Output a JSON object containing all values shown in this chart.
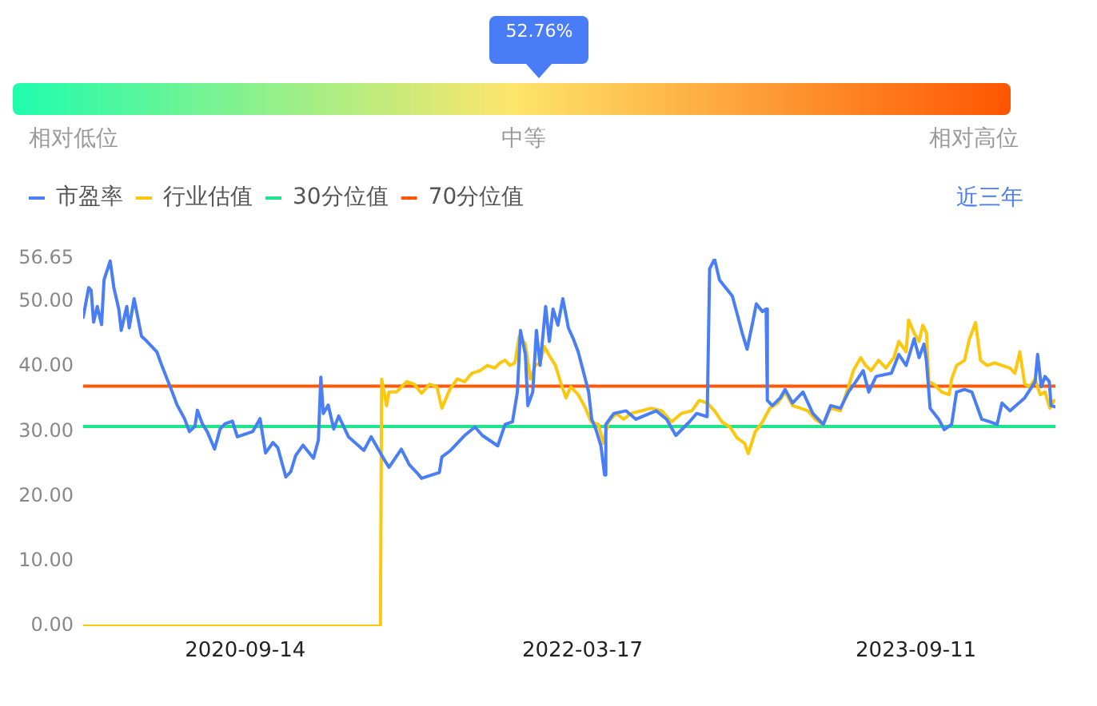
{
  "chart_data": [
    {
      "type": "other",
      "values": [
        52.76
      ],
      "value_labels": [
        "52.76%"
      ],
      "annotations": [
        "相对低位",
        "中等",
        "相对高位"
      ]
    },
    {
      "type": "line",
      "legend": "top left",
      "grid": false,
      "marker": "none",
      "annotations": [
        "近三年"
      ],
      "xlim": [
        "2019-12-25",
        "2024-04-25"
      ],
      "xticks": [
        "2020-09-14",
        "2022-03-17",
        "2023-09-11"
      ],
      "ylim": [
        0,
        56.65
      ],
      "yticks": [
        {
          "value": 0,
          "label": "0.00"
        },
        {
          "value": 10,
          "label": "10.00"
        },
        {
          "value": 20,
          "label": "20.00"
        },
        {
          "value": 30,
          "label": "30.00"
        },
        {
          "value": 40,
          "label": "40.00"
        },
        {
          "value": 50,
          "label": "50.00"
        },
        56.65
      ],
      "series": [
        {
          "name": "市盈率",
          "color": "#4a7ef5",
          "x": [
            "2019-12-25",
            "2020-01-03",
            "2020-01-07",
            "2020-01-11",
            "2020-01-17",
            "2020-01-24",
            "2020-01-28",
            "2020-02-07",
            "2020-02-13",
            "2020-02-21",
            "2020-02-25",
            "2020-03-05",
            "2020-03-09",
            "2020-03-17",
            "2020-03-29",
            "2020-04-07",
            "2020-04-23",
            "2020-05-01",
            "2020-05-18",
            "2020-05-26",
            "2020-06-07",
            "2020-06-15",
            "2020-06-24",
            "2020-06-28",
            "2020-07-06",
            "2020-07-14",
            "2020-07-26",
            "2020-08-04",
            "2020-08-12",
            "2020-08-24",
            "2020-09-01",
            "2020-09-26",
            "2020-10-08",
            "2020-10-17",
            "2020-10-29",
            "2020-11-06",
            "2020-11-19",
            "2020-11-27",
            "2020-12-05",
            "2020-12-17",
            "2021-01-03",
            "2021-01-11",
            "2021-01-15",
            "2021-01-19",
            "2021-01-27",
            "2021-02-05",
            "2021-02-13",
            "2021-03-01",
            "2021-03-26",
            "2021-04-07",
            "2021-04-28",
            "2021-05-06",
            "2021-05-26",
            "2021-06-08",
            "2021-06-20",
            "2021-06-28",
            "2021-07-11",
            "2021-07-27",
            "2021-07-31",
            "2021-08-13",
            "2021-09-06",
            "2021-09-23",
            "2021-10-05",
            "2021-10-30",
            "2021-11-11",
            "2021-11-23",
            "2021-12-01",
            "2021-12-06",
            "2021-12-14",
            "2021-12-18",
            "2021-12-26",
            "2022-01-01",
            "2022-01-07",
            "2022-01-16",
            "2022-01-22",
            "2022-01-28",
            "2022-02-05",
            "2022-02-13",
            "2022-02-22",
            "2022-03-02",
            "2022-03-10",
            "2022-03-18",
            "2022-03-27",
            "2022-04-01",
            "2022-04-08",
            "2022-04-16",
            "2022-04-22",
            "2022-04-24",
            "2022-05-07",
            "2022-05-27",
            "2022-06-12",
            "2022-07-15",
            "2022-08-01",
            "2022-08-16",
            "2022-09-07",
            "2022-09-19",
            "2022-10-06",
            "2022-10-10",
            "2022-10-18",
            "2022-10-26",
            "2022-11-16",
            "2022-11-24",
            "2022-12-02",
            "2022-12-10",
            "2022-12-19",
            "2022-12-25",
            "2023-01-04",
            "2023-01-10",
            "2023-01-12",
            "2023-01-20",
            "2023-02-02",
            "2023-02-10",
            "2023-02-22",
            "2023-03-11",
            "2023-03-27",
            "2023-04-13",
            "2023-04-25",
            "2023-05-11",
            "2023-05-24",
            "2023-06-05",
            "2023-06-17",
            "2023-06-26",
            "2023-07-08",
            "2023-08-02",
            "2023-08-14",
            "2023-08-26",
            "2023-09-08",
            "2023-09-16",
            "2023-09-24",
            "2023-09-28",
            "2023-10-04",
            "2023-10-18",
            "2023-10-27",
            "2023-11-08",
            "2023-11-16",
            "2023-11-29",
            "2023-12-11",
            "2023-12-27",
            "2024-01-09",
            "2024-01-21",
            "2024-01-29",
            "2024-02-11",
            "2024-03-06",
            "2024-03-23",
            "2024-03-27",
            "2024-04-02",
            "2024-04-08",
            "2024-04-15",
            "2024-04-18",
            "2024-04-25"
          ],
          "values": [
            47.6,
            52.2,
            51.8,
            46.9,
            49.3,
            46.5,
            53.4,
            56.3,
            52.2,
            48.9,
            45.6,
            49.3,
            46.0,
            50.5,
            44.7,
            43.9,
            42.3,
            40.2,
            36.1,
            34.1,
            32.0,
            30.0,
            30.8,
            33.3,
            31.2,
            30.0,
            27.3,
            30.4,
            31.2,
            31.6,
            29.2,
            30.0,
            32.0,
            26.7,
            28.3,
            27.5,
            23.0,
            23.8,
            26.3,
            27.9,
            25.9,
            28.7,
            38.4,
            32.8,
            34.1,
            30.4,
            32.4,
            29.2,
            27.1,
            29.2,
            25.7,
            24.5,
            27.3,
            24.9,
            23.7,
            22.8,
            23.2,
            23.7,
            26.1,
            27.0,
            29.4,
            30.7,
            29.4,
            27.8,
            31.1,
            31.5,
            36.1,
            45.6,
            41.9,
            34.0,
            36.1,
            45.6,
            40.2,
            49.3,
            43.9,
            48.9,
            46.4,
            50.5,
            46.0,
            44.3,
            42.3,
            39.4,
            36.1,
            31.9,
            30.3,
            27.8,
            23.3,
            31.1,
            32.8,
            33.2,
            31.9,
            33.2,
            31.9,
            29.4,
            31.5,
            32.8,
            32.3,
            55.1,
            56.6,
            53.4,
            50.9,
            48.1,
            45.2,
            42.7,
            46.8,
            49.7,
            48.5,
            48.9,
            34.8,
            34.0,
            35.2,
            36.5,
            34.4,
            36.1,
            32.8,
            31.1,
            34.0,
            33.6,
            36.1,
            37.7,
            39.4,
            36.1,
            38.5,
            39.0,
            41.9,
            40.2,
            44.3,
            41.4,
            43.5,
            40.9,
            33.6,
            31.9,
            30.3,
            31.1,
            36.1,
            36.5,
            36.1,
            31.9,
            31.5,
            31.1,
            34.4,
            33.2,
            35.2,
            37.7,
            41.9,
            36.9,
            38.5,
            37.7,
            34.0,
            33.8
          ]
        },
        {
          "name": "行业估值",
          "color": "#fbc70f",
          "x": [
            "2019-12-25",
            "2021-04-22",
            "2021-04-24",
            "2021-05-02",
            "2021-05-06",
            "2021-05-18",
            "2021-06-04",
            "2021-06-16",
            "2021-06-28",
            "2021-07-11",
            "2021-07-23",
            "2021-07-31",
            "2021-08-13",
            "2021-08-25",
            "2021-09-06",
            "2021-09-18",
            "2021-10-01",
            "2021-10-13",
            "2021-10-25",
            "2021-11-03",
            "2021-11-11",
            "2021-11-19",
            "2021-11-27",
            "2021-12-04",
            "2021-12-14",
            "2021-12-22",
            "2021-12-30",
            "2022-01-07",
            "2022-01-14",
            "2022-01-24",
            "2022-02-01",
            "2022-02-09",
            "2022-02-18",
            "2022-02-26",
            "2022-03-10",
            "2022-03-22",
            "2022-03-31",
            "2022-04-12",
            "2022-04-20",
            "2022-04-28",
            "2022-05-11",
            "2022-05-23",
            "2022-06-04",
            "2022-06-21",
            "2022-07-07",
            "2022-07-24",
            "2022-08-09",
            "2022-08-25",
            "2022-09-11",
            "2022-09-23",
            "2022-10-06",
            "2022-10-18",
            "2022-10-30",
            "2022-11-12",
            "2022-11-24",
            "2022-12-06",
            "2022-12-12",
            "2022-12-23",
            "2023-01-04",
            "2023-01-16",
            "2023-01-29",
            "2023-02-10",
            "2023-02-22",
            "2023-03-07",
            "2023-03-19",
            "2023-03-31",
            "2023-04-13",
            "2023-04-25",
            "2023-05-11",
            "2023-05-24",
            "2023-06-01",
            "2023-06-13",
            "2023-06-21",
            "2023-06-30",
            "2023-07-12",
            "2023-07-24",
            "2023-08-06",
            "2023-08-14",
            "2023-08-26",
            "2023-08-30",
            "2023-09-08",
            "2023-09-16",
            "2023-09-22",
            "2023-09-28",
            "2023-10-02",
            "2023-10-10",
            "2023-10-23",
            "2023-11-04",
            "2023-11-08",
            "2023-11-16",
            "2023-11-29",
            "2023-12-07",
            "2023-12-17",
            "2023-12-25",
            "2024-01-05",
            "2024-01-17",
            "2024-01-29",
            "2024-02-11",
            "2024-02-19",
            "2024-02-27",
            "2024-03-06",
            "2024-03-14",
            "2024-03-23",
            "2024-03-31",
            "2024-04-08",
            "2024-04-16",
            "2024-04-23"
          ],
          "values": [
            0,
            0,
            38.1,
            34.0,
            36.1,
            36.1,
            37.7,
            37.3,
            35.9,
            37.3,
            36.9,
            33.6,
            36.5,
            38.1,
            37.7,
            39.0,
            39.4,
            40.2,
            39.8,
            40.6,
            41.0,
            40.2,
            40.6,
            44.7,
            43.5,
            38.1,
            40.2,
            40.6,
            43.1,
            41.4,
            40.2,
            37.7,
            35.2,
            36.9,
            35.7,
            33.6,
            31.5,
            31.1,
            28.2,
            31.5,
            32.8,
            31.9,
            32.8,
            33.2,
            33.6,
            33.2,
            31.5,
            32.8,
            33.2,
            34.8,
            34.4,
            33.2,
            31.5,
            30.7,
            29.0,
            28.2,
            26.6,
            29.9,
            31.5,
            33.6,
            34.4,
            36.1,
            34.0,
            33.6,
            33.2,
            31.9,
            31.1,
            33.6,
            33.2,
            36.9,
            39.4,
            41.4,
            40.2,
            39.4,
            41.0,
            39.8,
            41.4,
            43.9,
            42.3,
            47.2,
            45.2,
            43.9,
            46.4,
            45.2,
            37.7,
            37.3,
            36.1,
            35.7,
            38.1,
            40.2,
            41.0,
            44.3,
            46.8,
            41.0,
            40.2,
            40.6,
            40.2,
            39.8,
            39.0,
            42.3,
            37.3,
            36.9,
            38.1,
            35.7,
            36.1,
            33.6,
            34.8
          ]
        },
        {
          "name": "30分位值",
          "color": "#1de68a",
          "x": [
            "2019-12-25",
            "2024-04-25"
          ],
          "values": [
            30.8,
            30.8
          ]
        },
        {
          "name": "70分位值",
          "color": "#ff5a0a",
          "x": [
            "2019-12-25",
            "2024-04-25"
          ],
          "values": [
            37.0,
            37.0
          ]
        }
      ]
    }
  ]
}
